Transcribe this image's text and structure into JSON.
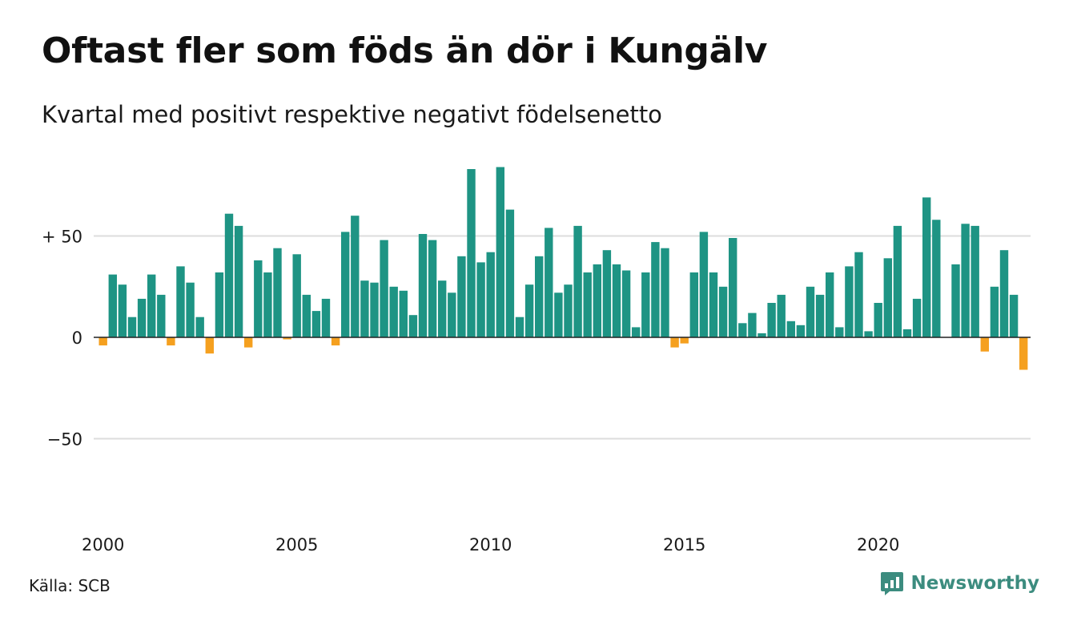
{
  "title": "Oftast fler som föds än dör i Kungälv",
  "subtitle": "Kvartal med positivt respektive negativt födelsenetto",
  "source": "Källa: SCB",
  "brand": {
    "name": "Newsworthy",
    "icon": "newsworthy-chart-bubble-icon"
  },
  "colors": {
    "positive": "#1e9484",
    "negative": "#f5a01f",
    "grid": "#dddddd",
    "zero": "#222222",
    "brand": "#3c8c7f"
  },
  "chart_data": {
    "type": "bar",
    "x_start": "2000 Q1",
    "x_ticks": [
      {
        "label": "2000",
        "index": 0
      },
      {
        "label": "2005",
        "index": 20
      },
      {
        "label": "2010",
        "index": 40
      },
      {
        "label": "2015",
        "index": 60
      },
      {
        "label": "2020",
        "index": 80
      }
    ],
    "y_ticks": [
      {
        "value": 50,
        "label": "+ 50"
      },
      {
        "value": 0,
        "label": "0"
      },
      {
        "value": -50,
        "label": "−50"
      }
    ],
    "ylim": [
      -80,
      90
    ],
    "grid": true,
    "values": [
      -4,
      31,
      26,
      10,
      19,
      31,
      21,
      -4,
      35,
      27,
      10,
      -8,
      32,
      61,
      55,
      -5,
      38,
      32,
      44,
      -1,
      41,
      21,
      13,
      19,
      -4,
      52,
      60,
      28,
      27,
      48,
      25,
      23,
      11,
      51,
      48,
      28,
      22,
      40,
      83,
      37,
      42,
      84,
      63,
      10,
      26,
      40,
      54,
      22,
      26,
      55,
      32,
      36,
      43,
      36,
      33,
      5,
      32,
      47,
      44,
      -5,
      -3,
      32,
      52,
      32,
      25,
      49,
      7,
      12,
      2,
      17,
      21,
      8,
      6,
      25,
      21,
      32,
      5,
      35,
      42,
      3,
      17,
      39,
      55,
      4,
      19,
      69,
      58,
      0,
      36,
      56,
      55,
      -7,
      25,
      43,
      21,
      -16
    ]
  }
}
